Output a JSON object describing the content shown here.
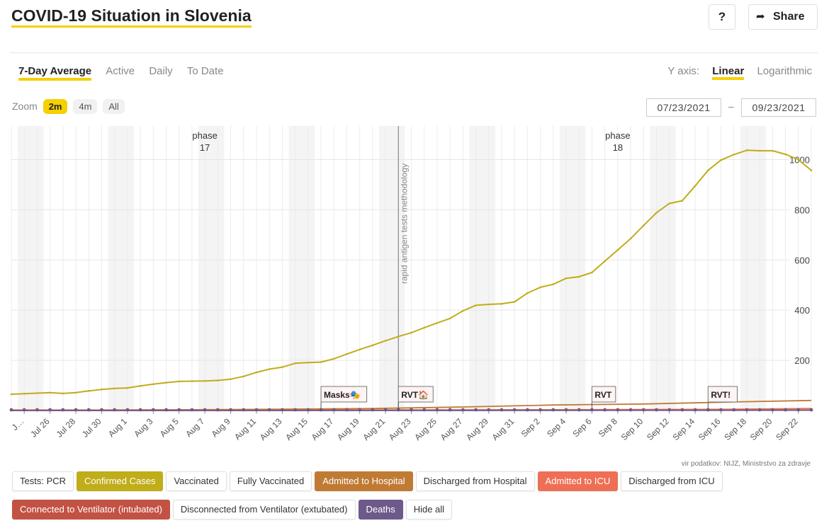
{
  "header": {
    "title": "COVID-19 Situation in Slovenia",
    "help_label": "?",
    "share_label": "Share",
    "share_icon": "share-arrow-icon"
  },
  "tabs": [
    {
      "label": "7-Day Average",
      "active": true
    },
    {
      "label": "Active",
      "active": false
    },
    {
      "label": "Daily",
      "active": false
    },
    {
      "label": "To Date",
      "active": false
    }
  ],
  "yaxis_toggle": {
    "label": "Y axis:",
    "linear": "Linear",
    "log": "Logarithmic",
    "selected": "Linear"
  },
  "zoom": {
    "label": "Zoom",
    "options": [
      "2m",
      "4m",
      "All"
    ],
    "selected": "2m"
  },
  "date_range": {
    "from": "07/23/2021",
    "separator": "–",
    "to": "09/23/2021"
  },
  "source": "vir podatkov: NIJZ, Ministrstvo za zdravje",
  "legend": [
    {
      "label": "Tests: PCR",
      "bg": "#ffffff",
      "fg": "#333333"
    },
    {
      "label": "Confirmed Cases",
      "bg": "#c0ad1a",
      "fg": "#ffffff"
    },
    {
      "label": "Vaccinated",
      "bg": "#ffffff",
      "fg": "#333333"
    },
    {
      "label": "Fully Vaccinated",
      "bg": "#ffffff",
      "fg": "#333333"
    },
    {
      "label": "Admitted to Hospital",
      "bg": "#c07a34",
      "fg": "#ffffff"
    },
    {
      "label": "Discharged from Hospital",
      "bg": "#ffffff",
      "fg": "#333333"
    },
    {
      "label": "Admitted to ICU",
      "bg": "#ee6f55",
      "fg": "#ffffff"
    },
    {
      "label": "Discharged from ICU",
      "bg": "#ffffff",
      "fg": "#333333"
    },
    {
      "label": "Connected to Ventilator (intubated)",
      "bg": "#c25244",
      "fg": "#ffffff"
    },
    {
      "label": "Disconnected from Ventilator (extubated)",
      "bg": "#ffffff",
      "fg": "#333333"
    },
    {
      "label": "Deaths",
      "bg": "#6e5a8a",
      "fg": "#ffffff"
    },
    {
      "label": "Hide all",
      "bg": "#ffffff",
      "fg": "#333333"
    }
  ],
  "chart_data": {
    "type": "line",
    "x_range": [
      "2021-07-23",
      "2021-09-23"
    ],
    "ylim": [
      0,
      1100
    ],
    "yticks": [
      200,
      400,
      600,
      800,
      1000
    ],
    "xticks": [
      "J…",
      "Jul 26",
      "Jul 28",
      "Jul 30",
      "Aug 1",
      "Aug 3",
      "Aug 5",
      "Aug 7",
      "Aug 9",
      "Aug 11",
      "Aug 13",
      "Aug 15",
      "Aug 17",
      "Aug 19",
      "Aug 21",
      "Aug 23",
      "Aug 25",
      "Aug 27",
      "Aug 29",
      "Aug 31",
      "Sep 2",
      "Sep 4",
      "Sep 6",
      "Sep 8",
      "Sep 10",
      "Sep 12",
      "Sep 14",
      "Sep 16",
      "Sep 18",
      "Sep 20",
      "Sep 22"
    ],
    "phases": [
      {
        "label": "phase",
        "number": "17",
        "date": "2021-08-07"
      },
      {
        "label": "phase",
        "number": "18",
        "date": "2021-09-08"
      }
    ],
    "vertical_marker": {
      "date": "2021-08-22",
      "label": "rapid antigen tests methodology"
    },
    "event_flags": [
      {
        "date": "2021-08-16",
        "label": "Masks🎭"
      },
      {
        "date": "2021-08-22",
        "label": "RVT🏠"
      },
      {
        "date": "2021-09-06",
        "label": "RVT"
      },
      {
        "date": "2021-09-15",
        "label": "RVT!"
      }
    ],
    "series": [
      {
        "name": "Confirmed Cases",
        "color": "#c0ad1a",
        "x": [
          "2021-07-23",
          "2021-07-24",
          "2021-07-25",
          "2021-07-26",
          "2021-07-27",
          "2021-07-28",
          "2021-07-29",
          "2021-07-30",
          "2021-07-31",
          "2021-08-01",
          "2021-08-02",
          "2021-08-03",
          "2021-08-04",
          "2021-08-05",
          "2021-08-06",
          "2021-08-07",
          "2021-08-08",
          "2021-08-09",
          "2021-08-10",
          "2021-08-11",
          "2021-08-12",
          "2021-08-13",
          "2021-08-14",
          "2021-08-15",
          "2021-08-16",
          "2021-08-17",
          "2021-08-18",
          "2021-08-19",
          "2021-08-20",
          "2021-08-21",
          "2021-08-22",
          "2021-08-23",
          "2021-08-24",
          "2021-08-25",
          "2021-08-26",
          "2021-08-27",
          "2021-08-28",
          "2021-08-29",
          "2021-08-30",
          "2021-08-31",
          "2021-09-01",
          "2021-09-02",
          "2021-09-03",
          "2021-09-04",
          "2021-09-05",
          "2021-09-06",
          "2021-09-07",
          "2021-09-08",
          "2021-09-09",
          "2021-09-10",
          "2021-09-11",
          "2021-09-12",
          "2021-09-13",
          "2021-09-14",
          "2021-09-15",
          "2021-09-16",
          "2021-09-17",
          "2021-09-18",
          "2021-09-19",
          "2021-09-20",
          "2021-09-21",
          "2021-09-22",
          "2021-09-23"
        ],
        "values": [
          65,
          67,
          69,
          71,
          68,
          71,
          78,
          84,
          88,
          90,
          98,
          105,
          111,
          116,
          117,
          118,
          120,
          125,
          136,
          152,
          165,
          173,
          188,
          191,
          193,
          206,
          225,
          243,
          260,
          278,
          295,
          310,
          330,
          349,
          367,
          397,
          419,
          423,
          425,
          433,
          468,
          491,
          503,
          527,
          533,
          550,
          595,
          640,
          685,
          737,
          788,
          825,
          836,
          895,
          957,
          998,
          1020,
          1037,
          1035,
          1035,
          1021,
          1000,
          957
        ]
      },
      {
        "name": "Admitted to Hospital",
        "color": "#c07a34",
        "x": [
          "2021-07-23",
          "2021-07-30",
          "2021-08-06",
          "2021-08-13",
          "2021-08-20",
          "2021-08-27",
          "2021-09-03",
          "2021-09-10",
          "2021-09-17",
          "2021-09-23"
        ],
        "values": [
          2,
          2,
          3,
          5,
          8,
          14,
          22,
          26,
          34,
          40
        ]
      },
      {
        "name": "Admitted to ICU",
        "color": "#ee6f55",
        "x": [
          "2021-07-23",
          "2021-08-06",
          "2021-08-20",
          "2021-09-03",
          "2021-09-17",
          "2021-09-23"
        ],
        "values": [
          1,
          1,
          2,
          3,
          5,
          8
        ]
      },
      {
        "name": "Connected to Ventilator (intubated)",
        "color": "#c25244",
        "x": [
          "2021-07-23",
          "2021-08-20",
          "2021-09-23"
        ],
        "values": [
          0,
          1,
          2
        ]
      },
      {
        "name": "Deaths",
        "color": "#6e5a8a",
        "x": [
          "2021-07-23",
          "2021-08-20",
          "2021-09-23"
        ],
        "values": [
          0,
          0,
          1
        ]
      }
    ],
    "grid": true
  }
}
